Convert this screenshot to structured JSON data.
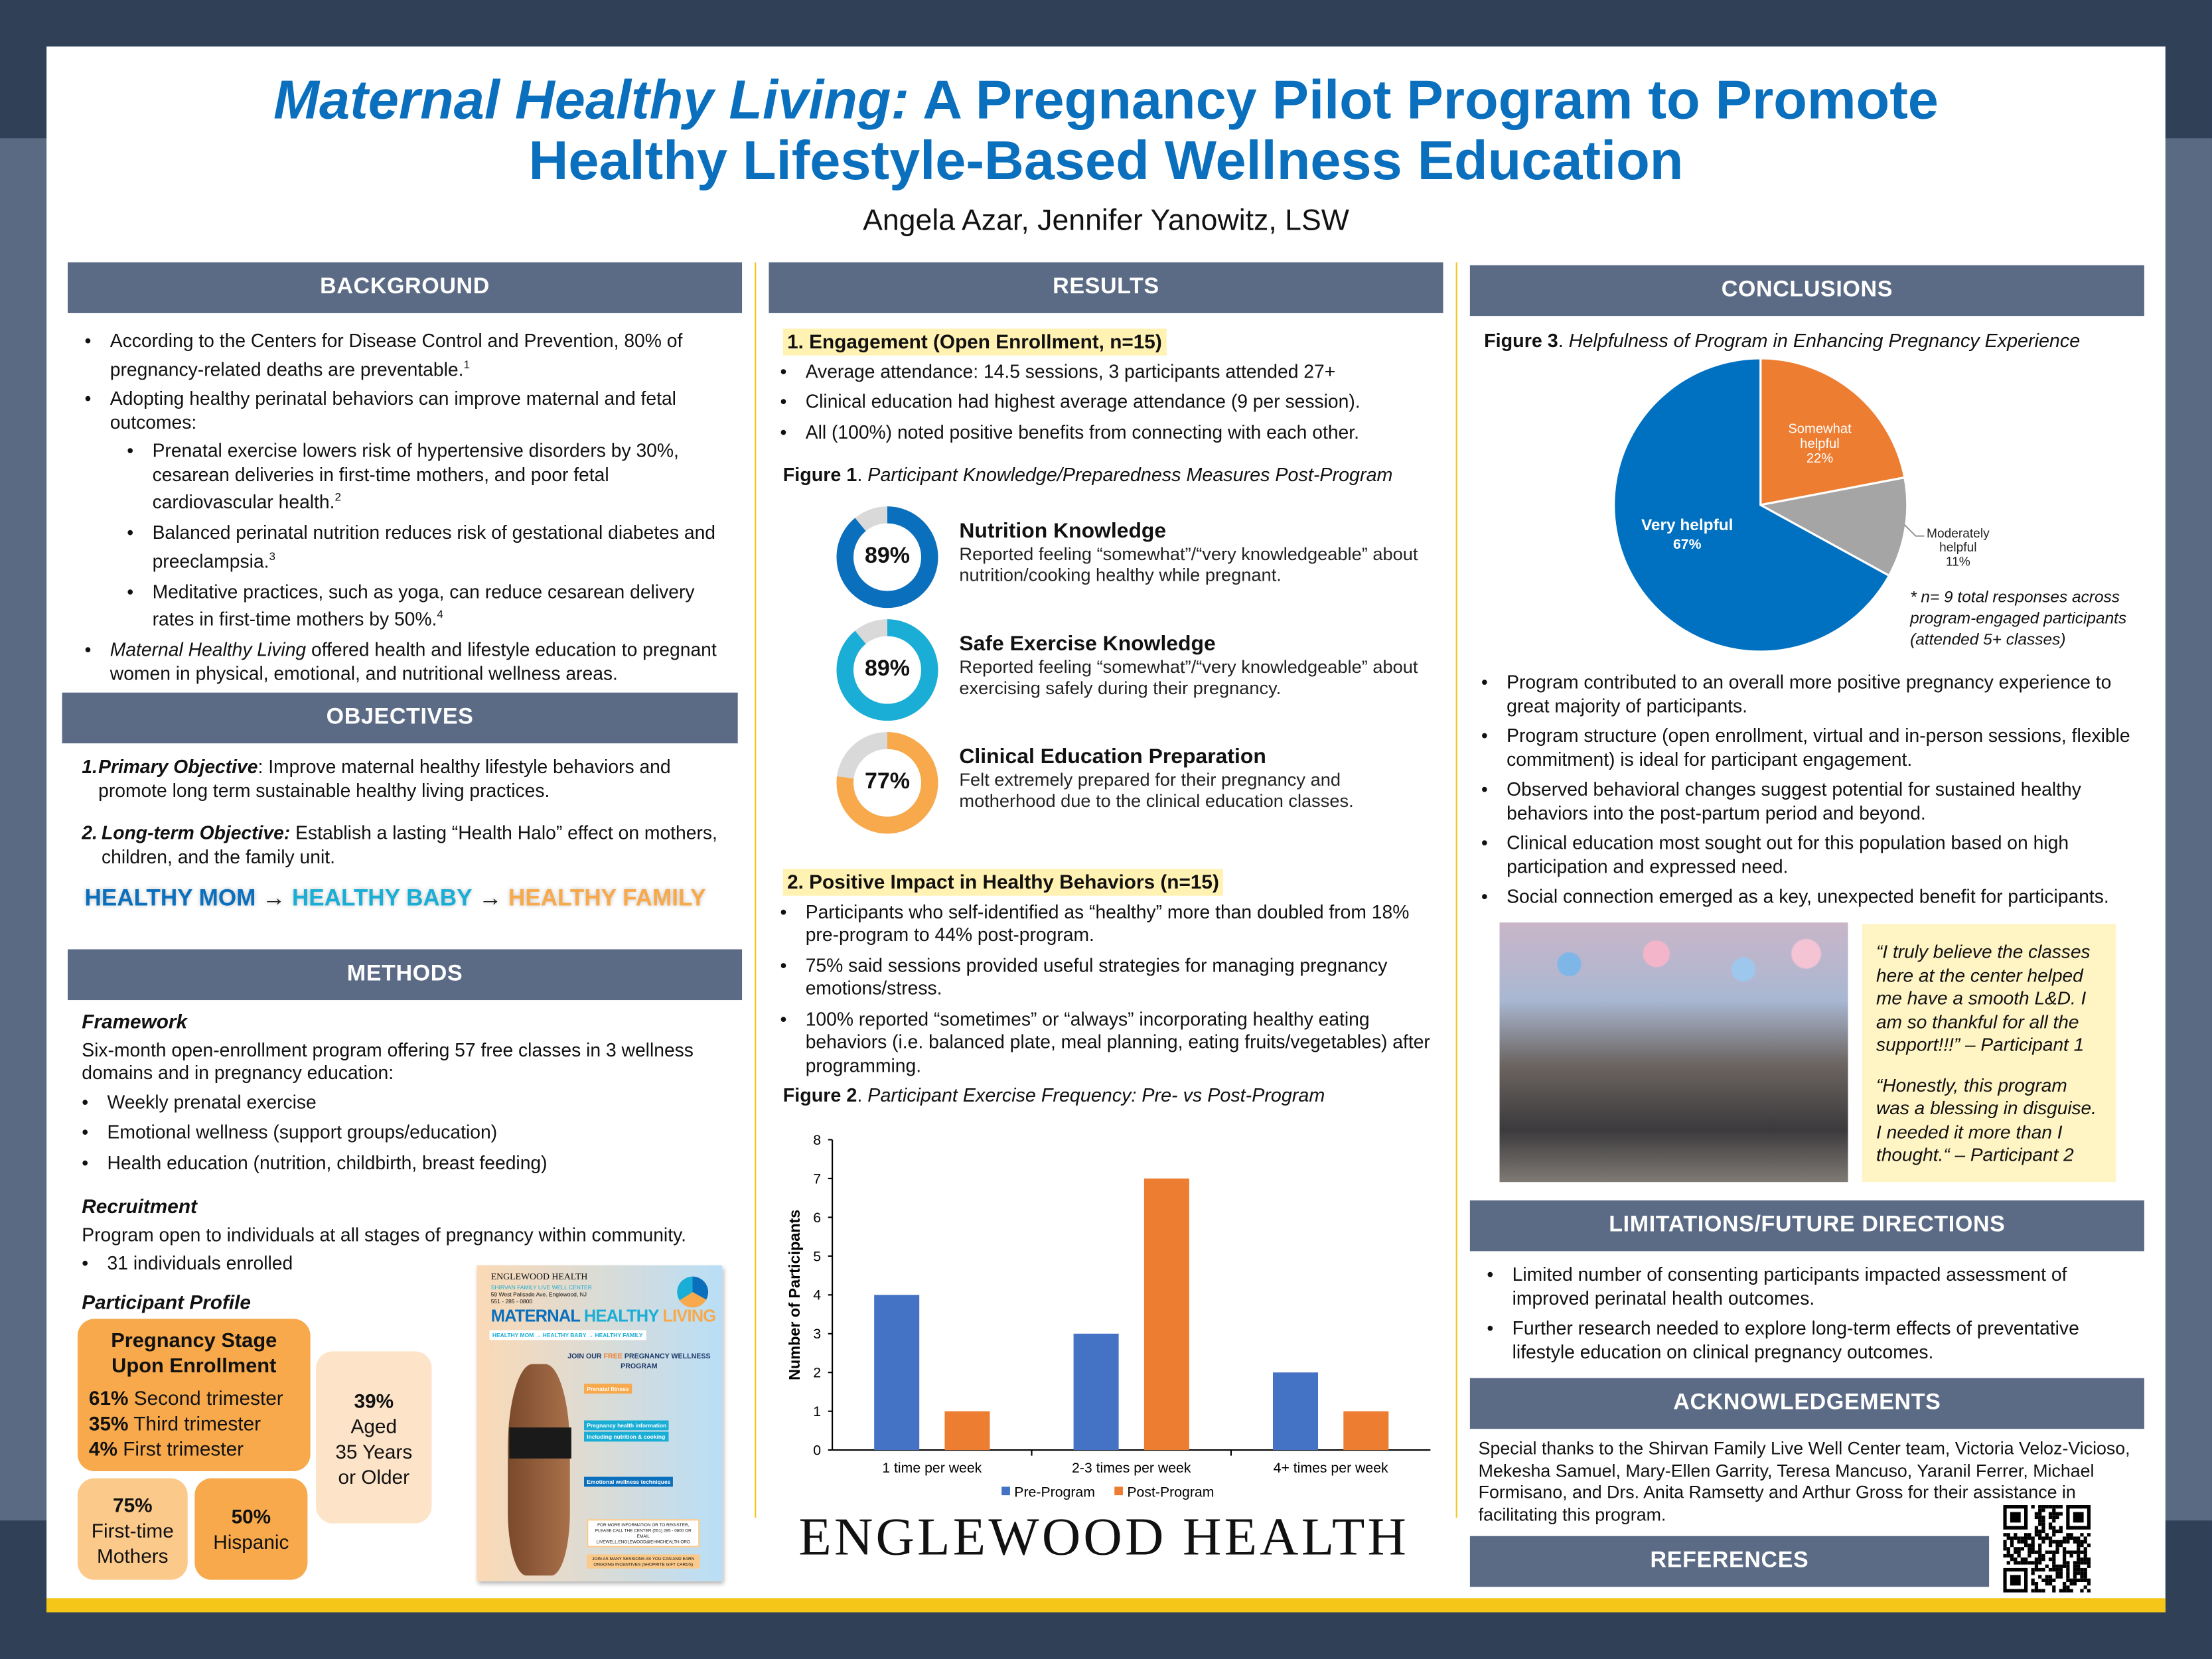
{
  "title": {
    "italic": "Maternal Healthy Living:",
    "rest_line1": " A Pregnancy Pilot Program to Promote",
    "line2": "Healthy Lifestyle-Based Wellness Education"
  },
  "authors": "Angela Azar, Jennifer Yanowitz, LSW",
  "colors": {
    "title": "#0a6fbd",
    "header_bar": "#5b6b85",
    "accent_yellow": "#f5c518",
    "pre": "#4472c4",
    "post": "#ed7d31",
    "pie_blue": "#0070c0",
    "pie_orange": "#ed7d31",
    "pie_gray": "#a5a5a5"
  },
  "background": {
    "header": "BACKGROUND",
    "items": [
      {
        "text": "According to the Centers for Disease Control and Prevention, 80% of pregnancy-related deaths are preventable.",
        "sup": "1"
      },
      {
        "text": "Adopting healthy perinatal behaviors can improve maternal and fetal outcomes:"
      }
    ],
    "sub": [
      {
        "text": "Prenatal exercise lowers risk of hypertensive disorders by 30%, cesarean deliveries in first-time mothers, and poor fetal cardiovascular health.",
        "sup": "2"
      },
      {
        "text": "Balanced perinatal nutrition reduces risk of gestational diabetes and preeclampsia.",
        "sup": "3"
      },
      {
        "text": "Meditative practices, such as yoga, can reduce cesarean delivery rates in first-time mothers by 50%.",
        "sup": "4"
      }
    ],
    "last_italic": "Maternal Healthy Living",
    "last_rest": " offered health and lifestyle education to pregnant women in physical, emotional, and nutritional wellness areas."
  },
  "objectives": {
    "header": "OBJECTIVES",
    "items": [
      {
        "num": "1.",
        "label": "Primary Objective",
        "text": ": Improve maternal healthy lifestyle behaviors and promote long term sustainable healthy living practices."
      },
      {
        "num": "2.",
        "label": "Long-term Objective:",
        "text": " Establish a lasting “Health Halo” effect on mothers, children, and the family unit."
      }
    ],
    "tagline": {
      "mom": "HEALTHY MOM",
      "arrow": " → ",
      "baby": "HEALTHY BABY",
      "family": "HEALTHY FAMILY"
    }
  },
  "methods": {
    "header": "METHODS",
    "framework_title": "Framework",
    "framework_text": "Six-month open-enrollment program offering 57 free classes in 3 wellness domains and in pregnancy education:",
    "framework_items": [
      "Weekly prenatal exercise",
      "Emotional wellness (support groups/education)",
      "Health education (nutrition, childbirth, breast feeding)"
    ],
    "recruitment_title": "Recruitment",
    "recruitment_text": "Program open to individuals at all stages of pregnancy within community.",
    "recruitment_items": [
      "31 individuals enrolled"
    ],
    "profile_title": "Participant Profile",
    "stage": {
      "title": "Pregnancy Stage Upon Enrollment",
      "rows": [
        {
          "pct": "61%",
          "label": " Second trimester"
        },
        {
          "pct": "35%",
          "label": " Third trimester"
        },
        {
          "pct": "4%",
          "label": " First trimester"
        }
      ]
    },
    "aged": {
      "pct": "39%",
      "l1": "Aged",
      "l2": "35 Years",
      "l3": "or Older"
    },
    "firsttime": {
      "pct": "75%",
      "l1": "First-time",
      "l2": "Mothers"
    },
    "hispanic": {
      "pct": "50%",
      "l1": "Hispanic"
    },
    "flyer": {
      "org": "ENGLEWOOD HEALTH",
      "center": "SHIRVAN FAMILY LIVE WELL CENTER",
      "address": "59 West Palisade Ave. Englewood, NJ",
      "phone": "551 - 285 - 0800",
      "t1": "MATERNAL",
      "t2": "HEALTHY",
      "t3": "LIVING",
      "tag": "HEALTHY MOM → HEALTHY BABY → HEALTHY FAMILY",
      "join1": "JOIN OUR",
      "join_free": "FREE",
      "join2": "PREGNANCY WELLNESS PROGRAM",
      "p1": "Prenatal fitness",
      "p2": "Pregnancy health information",
      "p3": "Including nutrition & cooking",
      "p4": "Emotional wellness techniques",
      "info": "FOR MORE INFORMATION OR TO REGISTER, PLEASE CALL THE CENTER (551) 285 - 0800 OR EMAIL LIVEWELL.ENGLEWOOD@EHMCHEALTH.ORG",
      "incent": "JOIN AS MANY SESSIONS AS YOU CAN AND EARN ONGOING INCENTIVES (SHOPRITE GIFT CARDS)"
    }
  },
  "results": {
    "header": "RESULTS",
    "s1_title": "1. Engagement (Open Enrollment, n=15)",
    "s1_items": [
      "Average attendance: 14.5 sessions, 3 participants attended 27+",
      "Clinical education had highest average attendance (9 per session).",
      "All (100%) noted positive benefits from connecting with each other."
    ],
    "fig1_label": "Figure 1",
    "fig1_caption": "Participant Knowledge/Preparedness Measures Post-Program",
    "measures": [
      {
        "pct": 89,
        "pct_label": "89%",
        "title": "Nutrition Knowledge",
        "desc": "Reported feeling “somewhat”/“very knowledgeable” about nutrition/cooking healthy while pregnant.",
        "color": "#0a6fbd"
      },
      {
        "pct": 89,
        "pct_label": "89%",
        "title": "Safe Exercise Knowledge",
        "desc": "Reported feeling “somewhat”/“very knowledgeable” about exercising safely during their pregnancy.",
        "color": "#1aaed6"
      },
      {
        "pct": 77,
        "pct_label": "77%",
        "title": "Clinical Education Preparation",
        "desc": "Felt extremely prepared for their pregnancy and motherhood due to the clinical education classes.",
        "color": "#f7a94b"
      }
    ],
    "s2_title": "2. Positive Impact in Healthy Behaviors (n=15)",
    "s2_items": [
      "Participants who self-identified as “healthy” more than doubled from 18% pre-program to 44% post-program.",
      "75% said sessions provided useful strategies for managing pregnancy emotions/stress.",
      "100% reported “sometimes” or “always” incorporating healthy eating behaviors (i.e. balanced plate, meal planning, eating fruits/vegetables) after programming."
    ],
    "fig2_label": "Figure 2",
    "fig2_caption": "Participant Exercise Frequency: Pre- vs Post-Program",
    "logo": "ENGLEWOOD HEALTH"
  },
  "chart_data": [
    {
      "type": "bar",
      "title": "",
      "xlabel": "",
      "ylabel": "Number of Participants",
      "ylim": [
        0,
        8
      ],
      "yticks": [
        0,
        1,
        2,
        3,
        4,
        5,
        6,
        7,
        8
      ],
      "categories": [
        "1 time per week",
        "2-3 times per week",
        "4+ times per week"
      ],
      "series": [
        {
          "name": "Pre-Program",
          "values": [
            4,
            3,
            2
          ]
        },
        {
          "name": "Post-Program",
          "values": [
            1,
            7,
            1
          ]
        }
      ],
      "legend": "bottom",
      "grid": false
    },
    {
      "type": "pie",
      "title": "",
      "slices": [
        {
          "label": "Somewhat helpful",
          "value": 22,
          "pct_label": "22%"
        },
        {
          "label": "Moderately helpful",
          "value": 11,
          "pct_label": "11%"
        },
        {
          "label": "Very helpful",
          "value": 67,
          "pct_label": "67%"
        }
      ]
    }
  ],
  "conclusions": {
    "header": "CONCLUSIONS",
    "fig3_label": "Figure 3",
    "fig3_caption": "Helpfulness of Program in Enhancing Pregnancy Experience",
    "note": "* n= 9 total responses across program-engaged participants (attended 5+ classes)",
    "items": [
      "Program contributed to an overall more positive pregnancy experience to great majority of participants.",
      "Program structure (open enrollment, virtual and in-person sessions, flexible commitment) is ideal for participant engagement.",
      "Observed behavioral changes suggest potential for sustained healthy behaviors into the post-partum period and beyond.",
      "Clinical education most sought out for this population based on high participation and expressed need.",
      "Social connection emerged as a key, unexpected benefit for participants."
    ],
    "quotes": [
      {
        "text": "“I truly believe the classes here at the center helped me have a smooth L&D. I am so thankful for all the support!!!” – Participant 1"
      },
      {
        "text": "“Honestly, this program was a blessing in disguise. I needed it more than I thought.“ – Participant 2"
      }
    ]
  },
  "limitations": {
    "header": "LIMITATIONS/FUTURE DIRECTIONS",
    "items": [
      "Limited number of consenting participants impacted assessment of improved perinatal health outcomes.",
      "Further research needed to explore long-term effects of preventative lifestyle education on clinical pregnancy outcomes."
    ]
  },
  "acknowledgements": {
    "header": "ACKNOWLEDGEMENTS",
    "text": "Special thanks to the Shirvan Family Live Well Center team, Victoria Veloz-Vicioso, Mekesha Samuel, Mary-Ellen Garrity, Teresa Mancuso, Yaranil Ferrer, Michael Formisano, and Drs. Anita Ramsetty and Arthur Gross for their assistance in facilitating this program."
  },
  "references": {
    "header": "REFERENCES"
  }
}
